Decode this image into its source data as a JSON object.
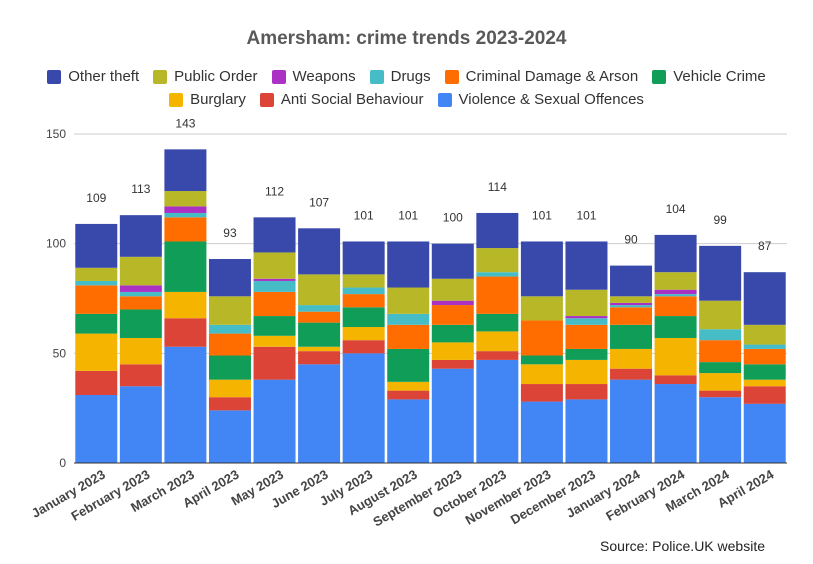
{
  "chart_data": {
    "type": "bar",
    "stacked": true,
    "title": "Amersham: crime trends 2023-2024",
    "xlabel": "",
    "ylabel": "",
    "ylim": [
      0,
      150
    ],
    "yticks": [
      0,
      50,
      100,
      150
    ],
    "grid": true,
    "legend_position": "top",
    "categories": [
      "January 2023",
      "February 2023",
      "March 2023",
      "April 2023",
      "May 2023",
      "June 2023",
      "July 2023",
      "August 2023",
      "September 2023",
      "October 2023",
      "November 2023",
      "December 2023",
      "January 2024",
      "February 2024",
      "March 2024",
      "April 2024"
    ],
    "totals": [
      109,
      113,
      143,
      93,
      112,
      107,
      101,
      101,
      100,
      114,
      101,
      101,
      90,
      104,
      99,
      87
    ],
    "series": [
      {
        "name": "Violence & Sexual Offences",
        "color": "#4285f4",
        "values": [
          31,
          35,
          53,
          24,
          38,
          45,
          50,
          29,
          43,
          47,
          28,
          29,
          38,
          36,
          30,
          27
        ]
      },
      {
        "name": "Anti Social Behaviour",
        "color": "#db4437",
        "values": [
          11,
          10,
          13,
          6,
          15,
          6,
          6,
          4,
          4,
          4,
          8,
          7,
          5,
          4,
          3,
          8
        ]
      },
      {
        "name": "Burglary",
        "color": "#f4b400",
        "values": [
          17,
          12,
          12,
          8,
          5,
          2,
          6,
          4,
          8,
          9,
          9,
          11,
          9,
          17,
          8,
          3
        ]
      },
      {
        "name": "Vehicle Crime",
        "color": "#0f9d58",
        "values": [
          9,
          13,
          23,
          11,
          9,
          11,
          9,
          15,
          8,
          8,
          4,
          5,
          11,
          10,
          5,
          7
        ]
      },
      {
        "name": "Criminal Damage & Arson",
        "color": "#ff6d01",
        "values": [
          13,
          6,
          11,
          10,
          11,
          5,
          6,
          11,
          9,
          17,
          16,
          11,
          8,
          9,
          10,
          7
        ]
      },
      {
        "name": "Drugs",
        "color": "#46bdc6",
        "values": [
          2,
          2,
          2,
          4,
          5,
          3,
          3,
          5,
          0,
          2,
          0,
          3,
          1,
          1,
          5,
          2
        ]
      },
      {
        "name": "Weapons",
        "color": "#ab30c4",
        "values": [
          0,
          3,
          3,
          0,
          1,
          0,
          0,
          0,
          2,
          0,
          0,
          1,
          1,
          2,
          0,
          0
        ]
      },
      {
        "name": "Public Order",
        "color": "#b7b728",
        "values": [
          6,
          13,
          7,
          13,
          12,
          14,
          6,
          12,
          10,
          11,
          11,
          12,
          3,
          8,
          13,
          9
        ]
      },
      {
        "name": "Other theft",
        "color": "#3949ab",
        "values": [
          20,
          19,
          19,
          17,
          16,
          21,
          15,
          21,
          16,
          16,
          25,
          22,
          14,
          17,
          25,
          24
        ]
      }
    ],
    "legend_order": [
      "Other theft",
      "Public Order",
      "Weapons",
      "Drugs",
      "Criminal Damage & Arson",
      "Vehicle Crime",
      "Burglary",
      "Anti Social Behaviour",
      "Violence & Sexual Offences"
    ],
    "source": "Source: Police.UK website"
  }
}
